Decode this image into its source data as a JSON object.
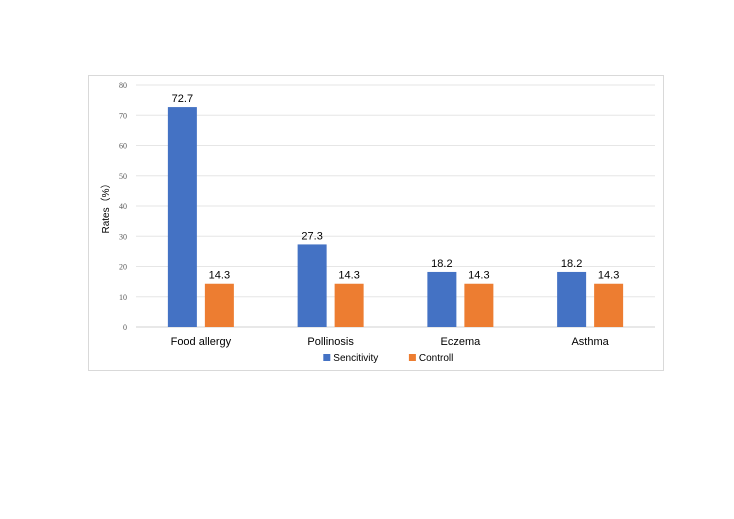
{
  "chart_data": {
    "type": "bar",
    "categories": [
      "Food allergy",
      "Pollinosis",
      "Eczema",
      "Asthma"
    ],
    "series": [
      {
        "name": "Sencitivity",
        "values": [
          72.7,
          27.3,
          18.2,
          18.2
        ],
        "color": "#4472C4"
      },
      {
        "name": "Controll",
        "values": [
          14.3,
          14.3,
          14.3,
          14.3
        ],
        "color": "#ED7D31"
      }
    ],
    "ylabel": "Rates（%）",
    "ylim": [
      0,
      80
    ],
    "yticks": [
      "0",
      "10",
      "20",
      "30",
      "40",
      "50",
      "60",
      "70",
      "80"
    ],
    "grid": true,
    "legend_position": "bottom"
  }
}
